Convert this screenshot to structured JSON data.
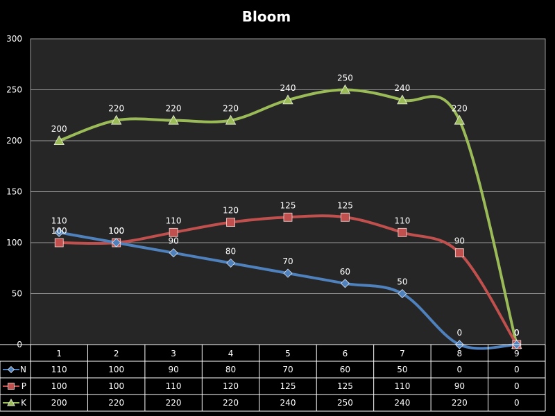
{
  "chart_data": {
    "type": "line",
    "title": "Bloom",
    "categories": [
      "1",
      "2",
      "3",
      "4",
      "5",
      "6",
      "7",
      "8",
      "9"
    ],
    "ylim": [
      0,
      300
    ],
    "yticks": [
      0,
      50,
      100,
      150,
      200,
      250,
      300
    ],
    "grid": true,
    "legend": "data-table-left",
    "series": [
      {
        "name": "N",
        "color": "#4f81bd",
        "marker": "diamond",
        "values": [
          110,
          100,
          90,
          80,
          70,
          60,
          50,
          0,
          0
        ]
      },
      {
        "name": "P",
        "color": "#c0504d",
        "marker": "square",
        "values": [
          100,
          100,
          110,
          120,
          125,
          125,
          110,
          90,
          0
        ]
      },
      {
        "name": "K",
        "color": "#9bbb59",
        "marker": "triangle",
        "values": [
          200,
          220,
          220,
          220,
          240,
          250,
          240,
          220,
          0
        ]
      }
    ]
  }
}
